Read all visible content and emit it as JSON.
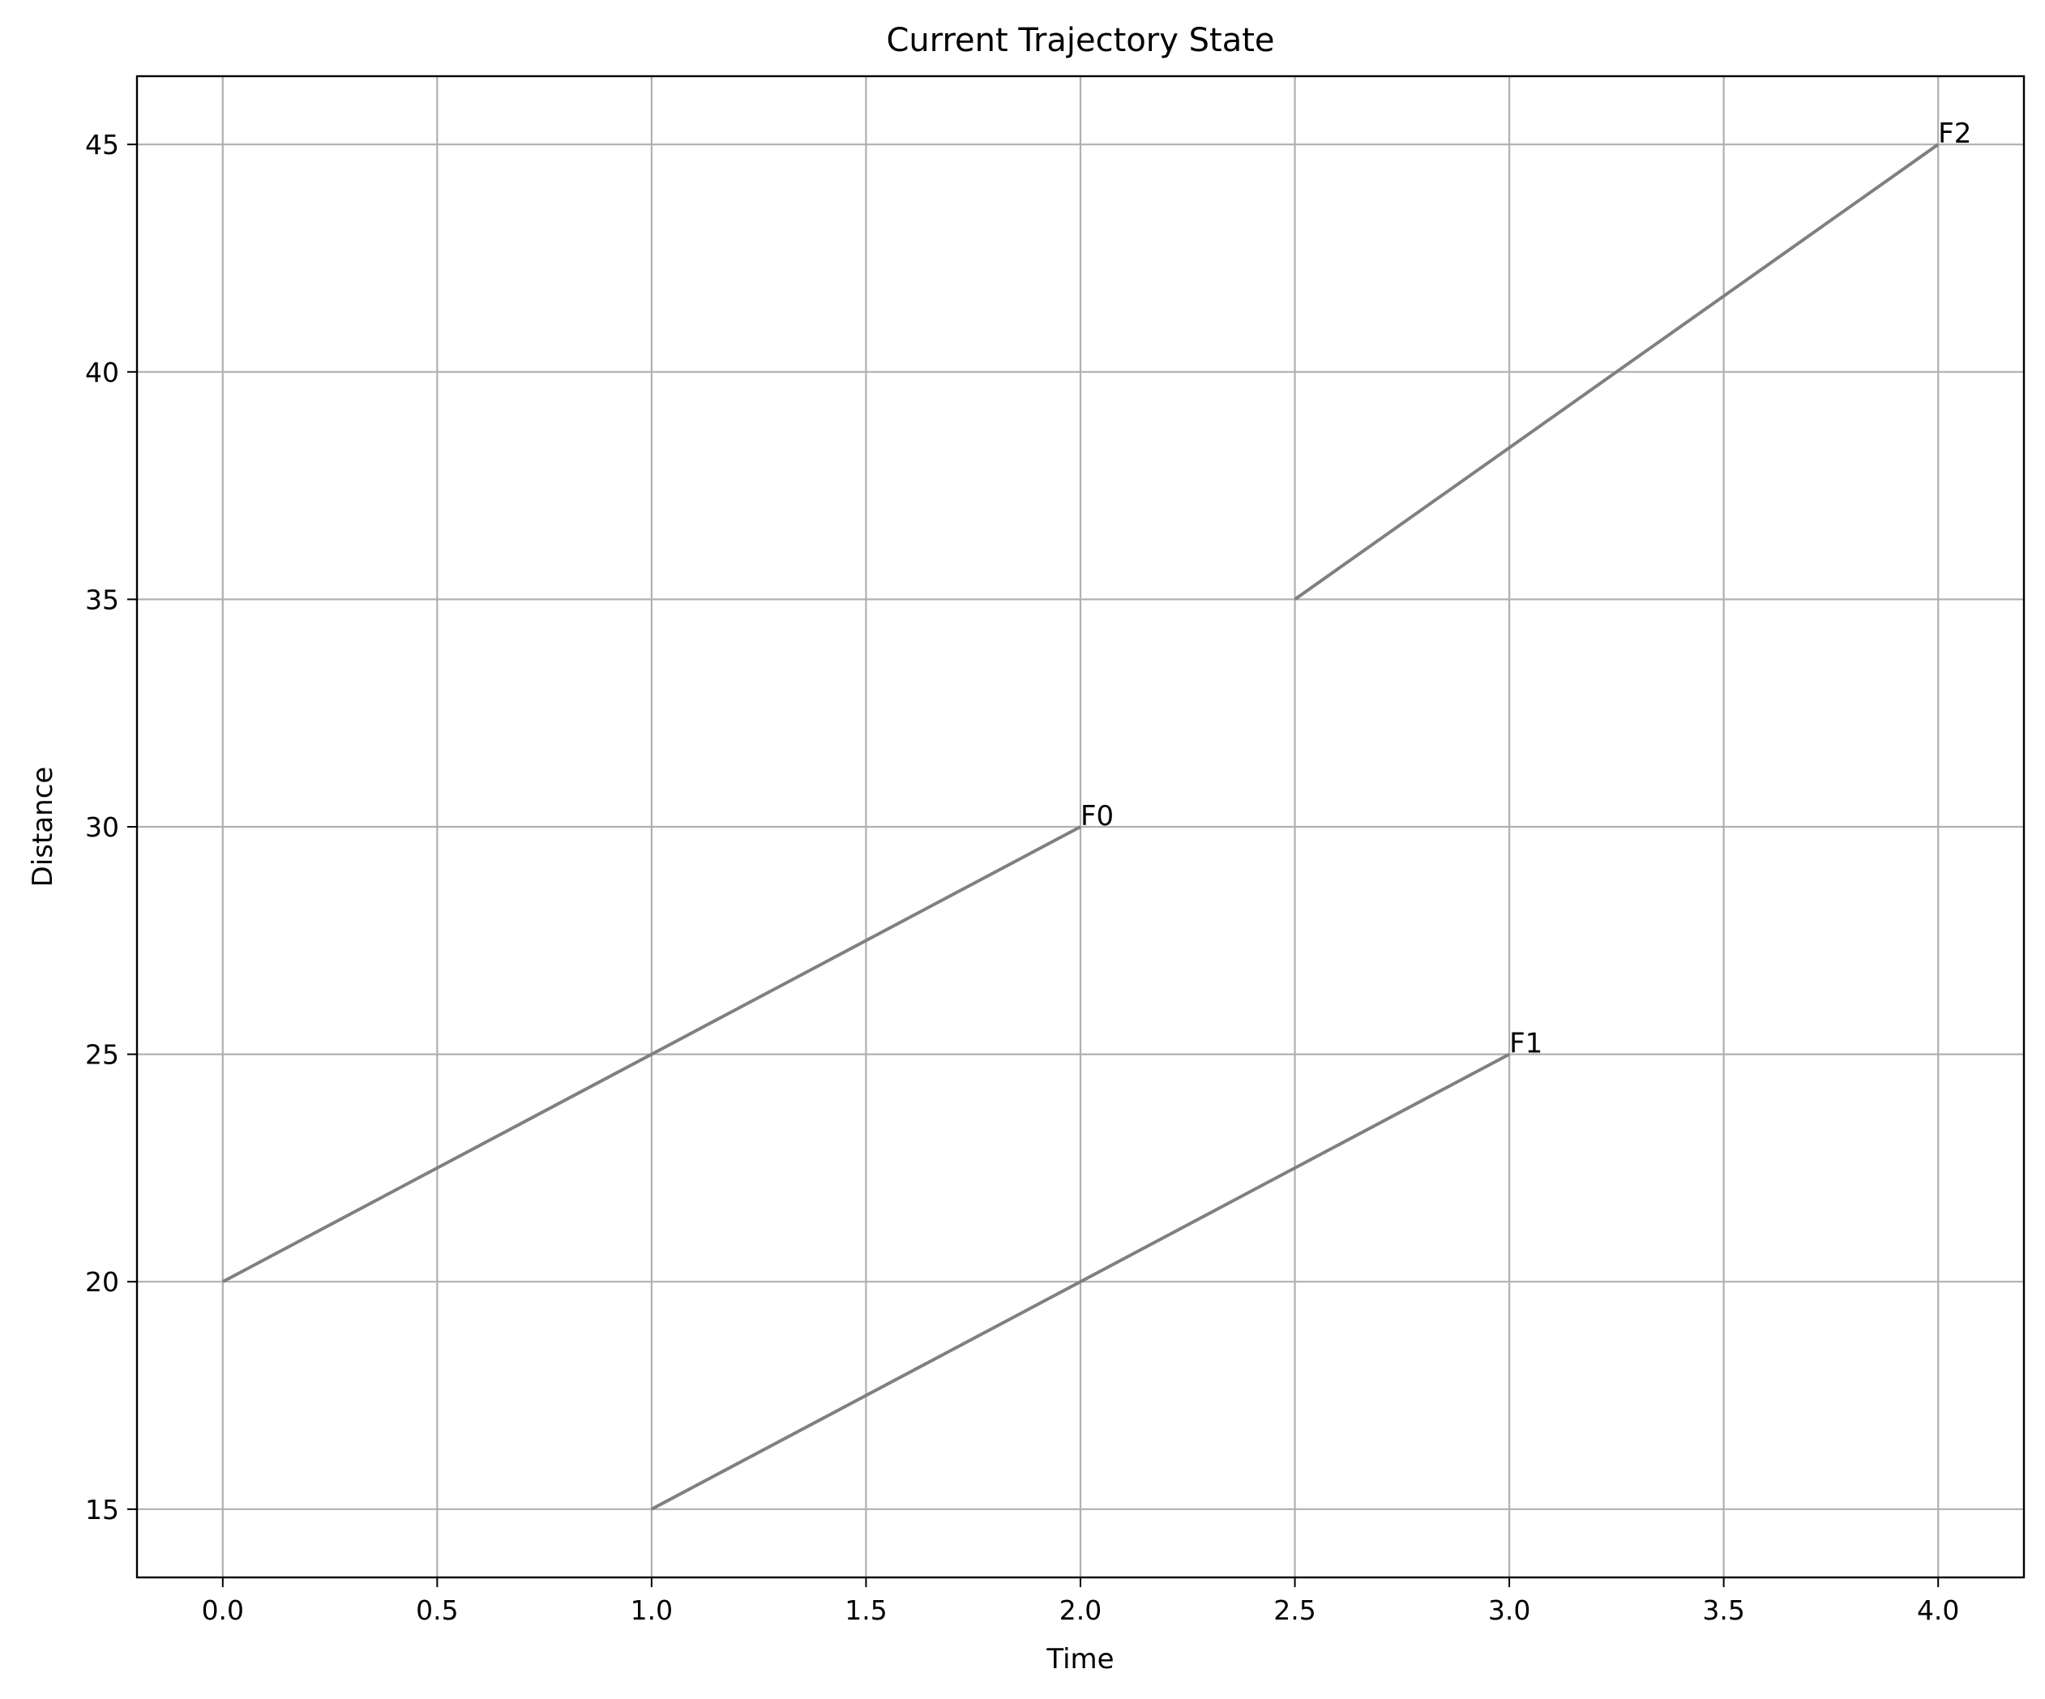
{
  "chart_data": {
    "type": "line",
    "title": "Current Trajectory State",
    "xlabel": "Time",
    "ylabel": "Distance",
    "xlim": [
      -0.2,
      4.2
    ],
    "ylim": [
      13.5,
      46.5
    ],
    "xticks": [
      0.0,
      0.5,
      1.0,
      1.5,
      2.0,
      2.5,
      3.0,
      3.5,
      4.0
    ],
    "xtick_labels": [
      "0.0",
      "0.5",
      "1.0",
      "1.5",
      "2.0",
      "2.5",
      "3.0",
      "3.5",
      "4.0"
    ],
    "yticks": [
      15,
      20,
      25,
      30,
      35,
      40,
      45
    ],
    "ytick_labels": [
      "15",
      "20",
      "25",
      "30",
      "35",
      "40",
      "45"
    ],
    "grid": true,
    "legend": "none",
    "line_color": "#808080",
    "series": [
      {
        "name": "F0",
        "x": [
          0.0,
          2.0
        ],
        "y": [
          20,
          30
        ]
      },
      {
        "name": "F1",
        "x": [
          1.0,
          3.0
        ],
        "y": [
          15,
          25
        ]
      },
      {
        "name": "F2",
        "x": [
          2.5,
          4.0
        ],
        "y": [
          35,
          45
        ]
      }
    ]
  }
}
